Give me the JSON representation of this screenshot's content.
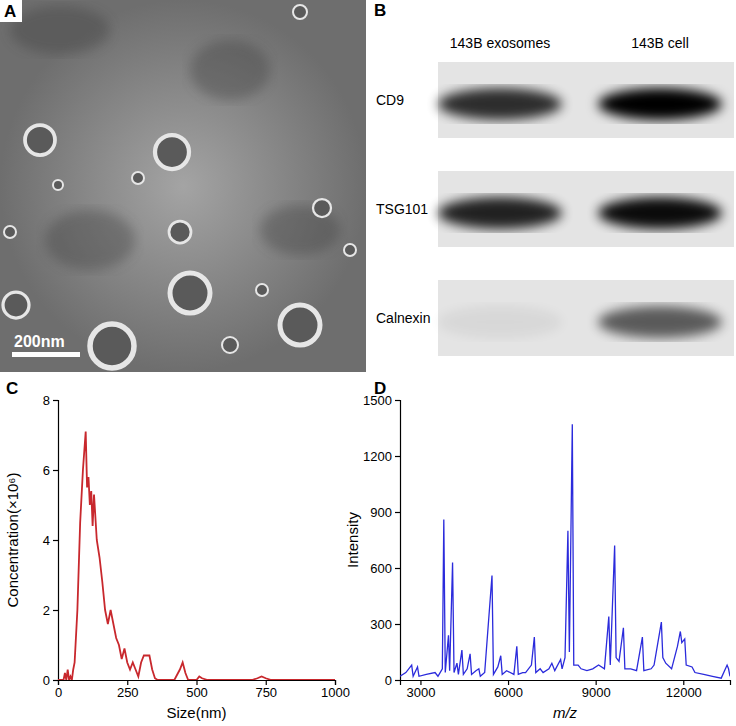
{
  "chart_data": [
    {
      "type": "image",
      "title": "A",
      "scale_bar": "200nm"
    },
    {
      "type": "blot",
      "title": "B",
      "categories": [
        "143B exosomes",
        "143B cell"
      ],
      "series": [
        {
          "name": "CD9",
          "values": [
            0.8,
            1.0
          ]
        },
        {
          "name": "TSG101",
          "values": [
            0.85,
            0.95
          ]
        },
        {
          "name": "Calnexin",
          "values": [
            0.05,
            0.6
          ]
        }
      ]
    },
    {
      "type": "line",
      "title": "C",
      "x_label": "Size(nm)",
      "y_label": "Concentration(×10⁶)",
      "color": "#c8282d",
      "x": [
        0,
        20,
        25,
        30,
        35,
        40,
        45,
        50,
        55,
        60,
        70,
        80,
        90,
        100,
        105,
        110,
        115,
        120,
        125,
        130,
        140,
        150,
        160,
        170,
        180,
        190,
        200,
        210,
        220,
        230,
        240,
        250,
        260,
        270,
        280,
        290,
        300,
        310,
        320,
        330,
        340,
        350,
        360,
        420,
        440,
        450,
        460,
        470,
        500,
        510,
        520,
        540,
        700,
        720,
        735,
        750,
        770,
        1000
      ],
      "values": [
        0,
        0,
        0.2,
        0,
        0.3,
        0,
        0.1,
        0,
        0.3,
        0.5,
        2,
        4.5,
        6,
        7.1,
        5.5,
        5.8,
        5,
        5.4,
        4.4,
        5.3,
        4,
        3.5,
        2.8,
        2,
        1.6,
        2,
        1.6,
        1.2,
        1,
        0.6,
        0.9,
        0.5,
        0.3,
        0.5,
        0.3,
        0.1,
        0.5,
        0.7,
        0.7,
        0.7,
        0.3,
        0.05,
        0,
        0,
        0.3,
        0.5,
        0.2,
        0,
        0,
        0.1,
        0.05,
        0,
        0,
        0.05,
        0.1,
        0.05,
        0,
        0
      ],
      "xlim": [
        0,
        1000
      ],
      "xticks": [
        0,
        250,
        500,
        750,
        1000
      ],
      "ylim": [
        0,
        8
      ],
      "yticks": [
        0,
        2,
        4,
        6,
        8
      ]
    },
    {
      "type": "line",
      "title": "D",
      "x_label": "m/z",
      "y_label": "Intensity",
      "color": "#2b2bdc",
      "x": [
        2300,
        2500,
        2700,
        2750,
        2900,
        2950,
        3200,
        3500,
        3600,
        3750,
        3800,
        3850,
        3960,
        4000,
        4100,
        4150,
        4250,
        4300,
        4420,
        4470,
        4600,
        4700,
        4750,
        4900,
        5000,
        5050,
        5200,
        5450,
        5500,
        5650,
        5750,
        5800,
        5950,
        6200,
        6300,
        6350,
        6500,
        6600,
        6800,
        6900,
        6950,
        7100,
        7200,
        7400,
        7500,
        7600,
        7800,
        7850,
        7950,
        8050,
        8100,
        8200,
        8250,
        8400,
        8500,
        8700,
        8900,
        9100,
        9300,
        9450,
        9500,
        9650,
        9700,
        9800,
        9950,
        10000,
        10200,
        10400,
        10600,
        10650,
        10900,
        11000,
        11250,
        11300,
        11400,
        11600,
        11800,
        11900,
        11950,
        12050,
        12100,
        12300,
        12400,
        12700,
        13000,
        13300,
        13500,
        13550,
        13600
      ],
      "values": [
        20,
        40,
        80,
        20,
        70,
        20,
        30,
        40,
        20,
        60,
        860,
        40,
        240,
        50,
        630,
        40,
        90,
        30,
        160,
        30,
        60,
        140,
        30,
        50,
        60,
        20,
        40,
        560,
        30,
        70,
        130,
        30,
        50,
        30,
        180,
        30,
        40,
        40,
        80,
        230,
        40,
        60,
        40,
        60,
        90,
        50,
        110,
        60,
        120,
        800,
        150,
        1370,
        80,
        80,
        60,
        50,
        60,
        80,
        60,
        340,
        80,
        720,
        120,
        100,
        280,
        60,
        60,
        50,
        230,
        50,
        60,
        80,
        310,
        120,
        90,
        60,
        180,
        260,
        200,
        220,
        80,
        70,
        40,
        30,
        20,
        10,
        80,
        60,
        20
      ],
      "xlim": [
        2300,
        13600
      ],
      "xticks": [
        3000,
        6000,
        9000,
        12000
      ],
      "ylim": [
        0,
        1500
      ],
      "yticks": [
        0,
        300,
        600,
        900,
        1200,
        1500
      ]
    }
  ]
}
